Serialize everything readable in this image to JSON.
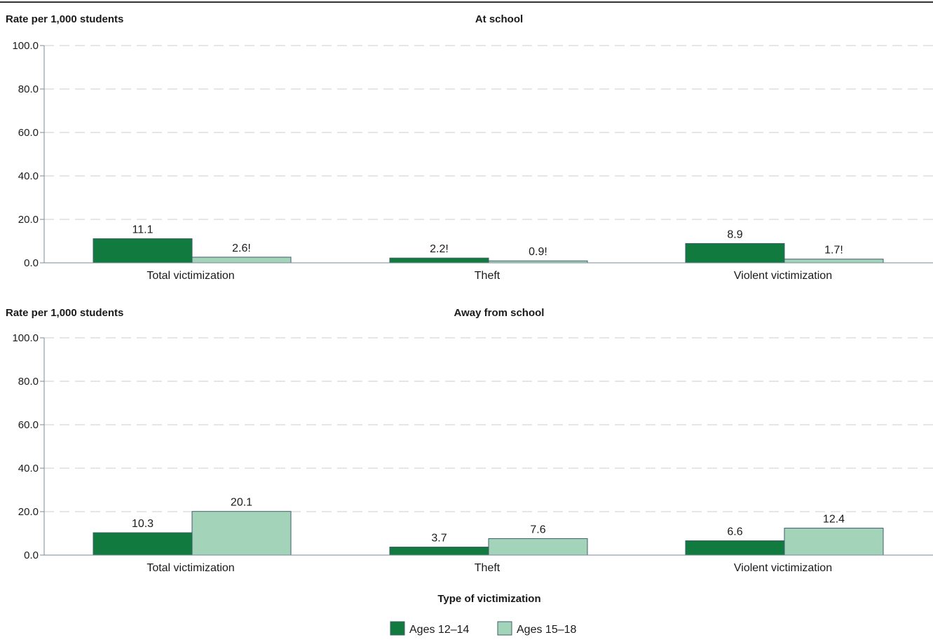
{
  "colors": {
    "series_a": "#117a3e",
    "series_b": "#a3d3b9",
    "bar_stroke": "#3f5d6b",
    "axis": "#7a8c96",
    "grid": "#c8ccd0",
    "top_rule": "#333333",
    "text": "#1a1a1a"
  },
  "legend": [
    {
      "label": "Ages 12–14",
      "color_key": "series_a"
    },
    {
      "label": "Ages 15–18",
      "color_key": "series_b"
    }
  ],
  "x_axis_title": "Type of victimization",
  "chart_data": [
    {
      "type": "bar",
      "title": "At school",
      "ylabel": "Rate per 1,000 students",
      "xlabel": "Type of victimization",
      "ylim": [
        0,
        100
      ],
      "yticks": [
        "0.0",
        "20.0",
        "40.0",
        "60.0",
        "80.0",
        "100.0"
      ],
      "ytick_values": [
        0,
        20,
        40,
        60,
        80,
        100
      ],
      "grid": true,
      "legend_position": "bottom",
      "categories": [
        "Total victimization",
        "Theft",
        "Violent victimization"
      ],
      "series": [
        {
          "name": "Ages 12–14",
          "values": [
            11.1,
            2.2,
            8.9
          ],
          "labels": [
            "11.1",
            "2.2!",
            "8.9"
          ]
        },
        {
          "name": "Ages 15–18",
          "values": [
            2.6,
            0.9,
            1.7
          ],
          "labels": [
            "2.6!",
            "0.9!",
            "1.7!"
          ]
        }
      ]
    },
    {
      "type": "bar",
      "title": "Away from school",
      "ylabel": "Rate per 1,000 students",
      "xlabel": "Type of victimization",
      "ylim": [
        0,
        100
      ],
      "yticks": [
        "0.0",
        "20.0",
        "40.0",
        "60.0",
        "80.0",
        "100.0"
      ],
      "ytick_values": [
        0,
        20,
        40,
        60,
        80,
        100
      ],
      "grid": true,
      "legend_position": "bottom",
      "categories": [
        "Total victimization",
        "Theft",
        "Violent victimization"
      ],
      "series": [
        {
          "name": "Ages 12–14",
          "values": [
            10.3,
            3.7,
            6.6
          ],
          "labels": [
            "10.3",
            "3.7",
            "6.6"
          ]
        },
        {
          "name": "Ages 15–18",
          "values": [
            20.1,
            7.6,
            12.4
          ],
          "labels": [
            "20.1",
            "7.6",
            "12.4"
          ]
        }
      ]
    }
  ]
}
